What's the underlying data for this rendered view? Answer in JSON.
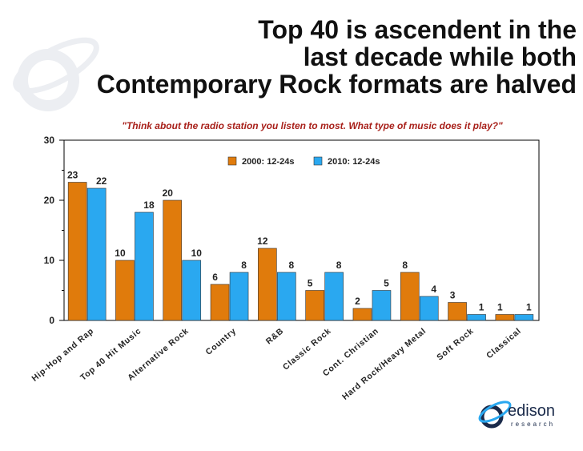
{
  "title_lines": [
    "Top 40 is ascendent in the",
    "last decade while both",
    "Contemporary Rock formats are halved"
  ],
  "logo": {
    "word": "edison",
    "sub": "research"
  },
  "chart_data": {
    "type": "bar",
    "title": "Top 40 is ascendent in the last decade while both Contemporary Rock formats are halved",
    "subtitle": "\"Think about the radio station you listen to most.  What type of music does it play?\"",
    "xlabel": "",
    "ylabel": "",
    "categories": [
      "Hip-Hop and Rap",
      "Top 40 Hit Music",
      "Alternative Rock",
      "Country",
      "R&B",
      "Classic Rock",
      "Cont. Christian",
      "Hard Rock/Heavy Metal",
      "Soft Rock",
      "Classical"
    ],
    "series": [
      {
        "name": "2000: 12-24s",
        "values": [
          23,
          10,
          20,
          6,
          12,
          5,
          2,
          8,
          3,
          1
        ],
        "color": "#e07b0c"
      },
      {
        "name": "2010: 12-24s",
        "values": [
          22,
          18,
          10,
          8,
          8,
          8,
          5,
          4,
          1,
          1
        ],
        "color": "#2aa8f0"
      }
    ],
    "ylim": [
      0,
      30
    ],
    "yticks": [
      0,
      10,
      20,
      30
    ],
    "grid": false,
    "legend": "top-center"
  }
}
